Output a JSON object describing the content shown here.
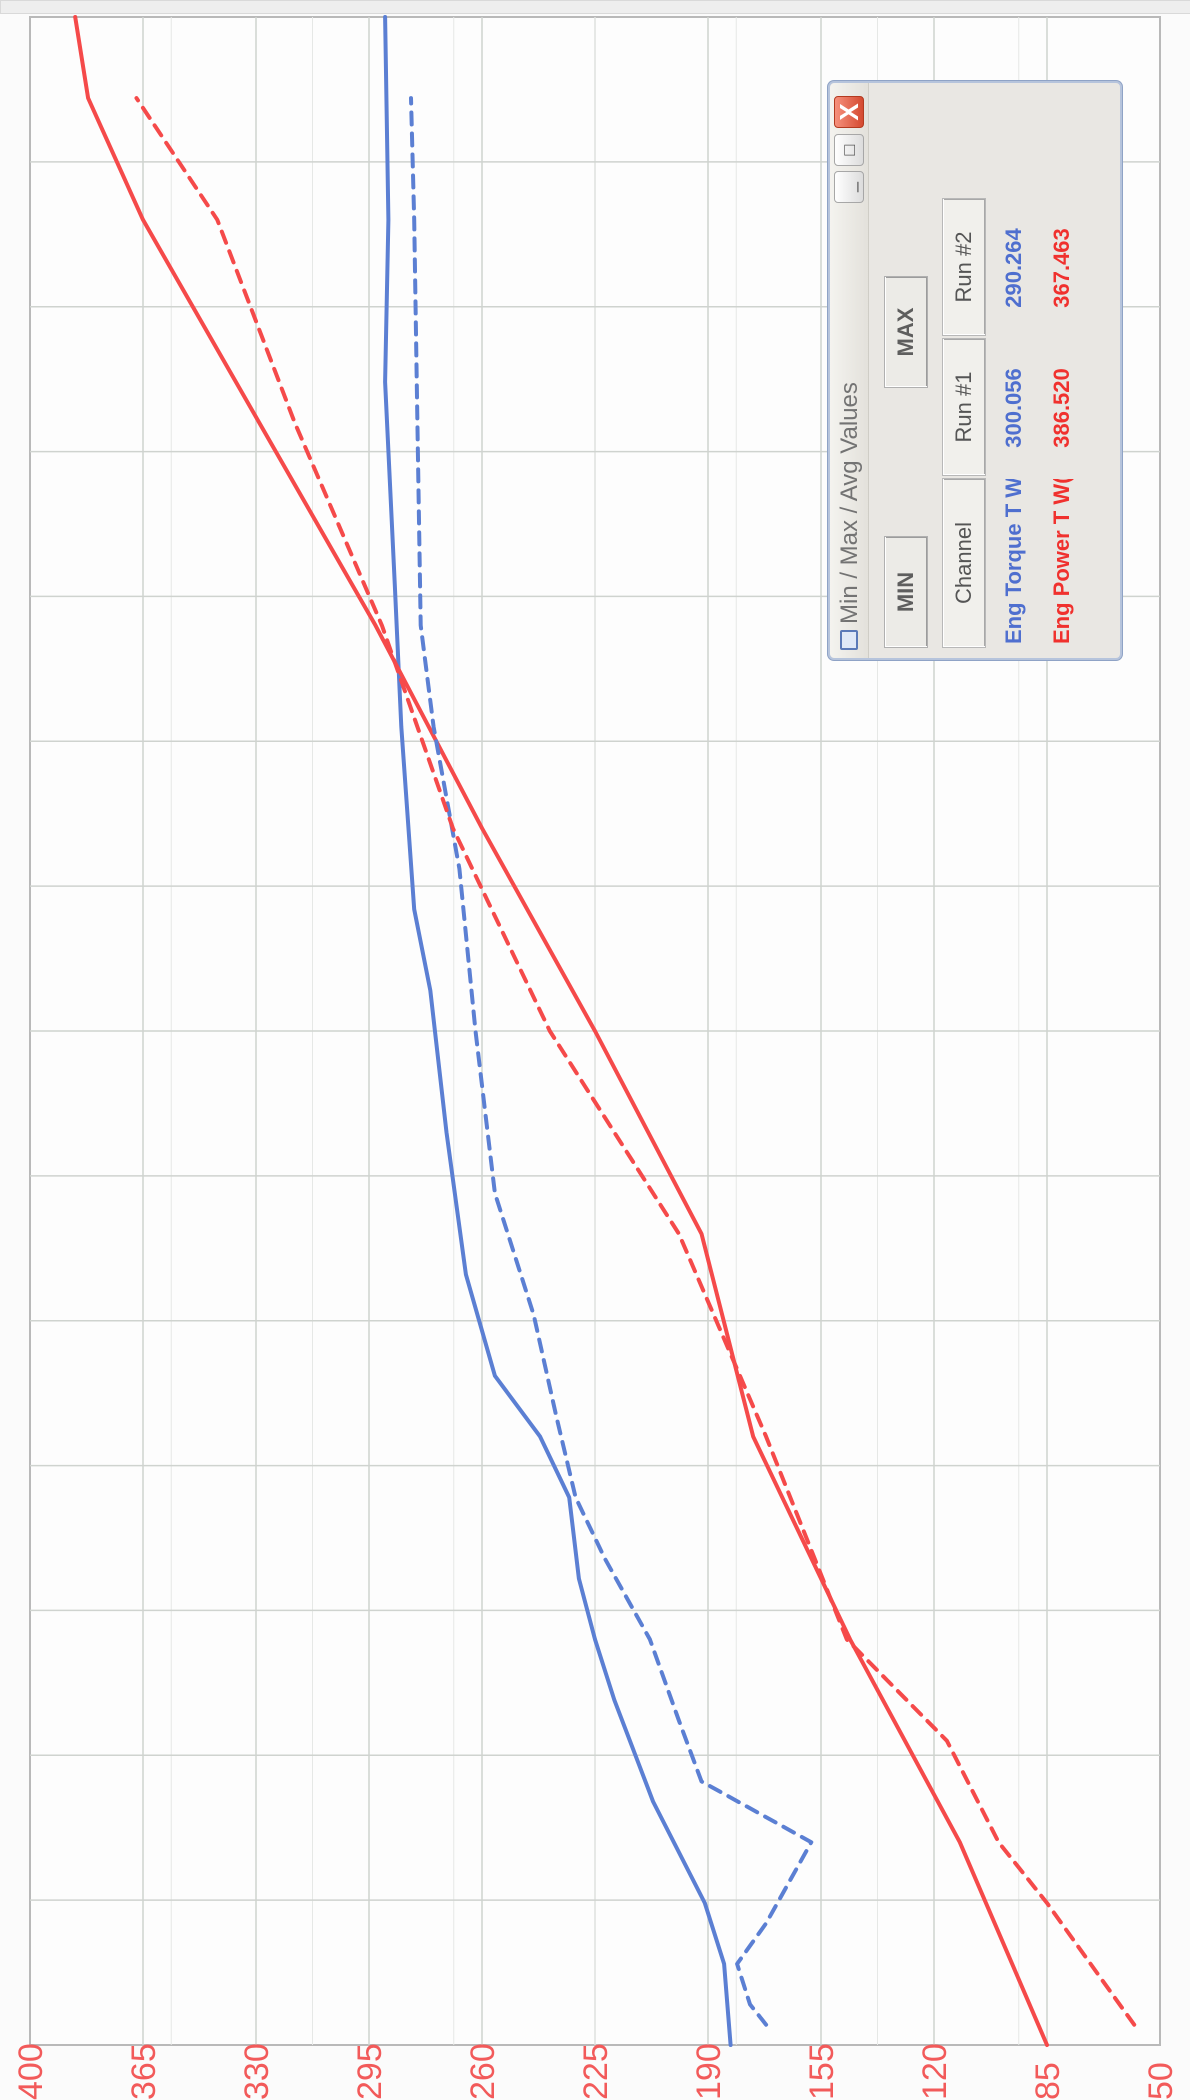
{
  "window": {
    "title": "Min / Max / Avg Values",
    "min_button_label": "_",
    "max_button_label": "□",
    "close_button_label": "X"
  },
  "mode_buttons": {
    "min_label": "MIN",
    "max_label": "MAX"
  },
  "table": {
    "columns": [
      "Channel",
      "Run #1",
      "Run #2"
    ],
    "rows": [
      {
        "channel": "Eng Torque T W",
        "run1": "300.056",
        "run2": "290.264",
        "color": "#4f6fcf"
      },
      {
        "channel": "Eng Power T W(",
        "run1": "386.520",
        "run2": "367.463",
        "color": "#f0312e"
      }
    ]
  },
  "chart_data": {
    "type": "line",
    "y_tick_labels": [
      "50",
      "85",
      "120",
      "155",
      "190",
      "225",
      "260",
      "295",
      "330",
      "365",
      "400"
    ],
    "ylim": [
      50,
      400
    ],
    "x_range": [
      0,
      100
    ],
    "grid": true,
    "series": [
      {
        "name": "Eng Torque T W",
        "run": "Run #1",
        "style": "solid",
        "color": "#5b7fd3",
        "x": [
          0,
          4,
          7,
          12,
          17,
          20,
          23,
          27,
          30,
          33,
          38,
          45,
          52,
          56,
          65,
          72,
          82,
          90,
          100
        ],
        "y": [
          183,
          185,
          191,
          207,
          219,
          225,
          230,
          233,
          242,
          256,
          265,
          271,
          276,
          281,
          285,
          287,
          290,
          289,
          290
        ]
      },
      {
        "name": "Eng Power T W(",
        "run": "Run #1",
        "style": "solid",
        "color": "#f54a4a",
        "x": [
          0,
          10,
          20,
          30,
          40,
          50,
          60,
          70,
          80,
          90,
          96,
          100
        ],
        "y": [
          85,
          112,
          146,
          176,
          192,
          225,
          260,
          293,
          329,
          365,
          382,
          386
        ]
      },
      {
        "name": "Eng Torque T W",
        "run": "Run #2",
        "style": "dashed",
        "color": "#5b7fd3",
        "x": [
          1,
          2,
          4,
          6,
          8,
          10,
          13,
          16,
          20,
          24,
          27,
          31,
          36,
          42,
          50,
          58,
          65,
          70,
          80,
          90,
          96
        ],
        "y": [
          172,
          177,
          181,
          172,
          165,
          158,
          192,
          199,
          208,
          222,
          231,
          237,
          244,
          256,
          262,
          267,
          275,
          279,
          280,
          281,
          282
        ]
      },
      {
        "name": "Eng Power T W(",
        "run": "Run #2",
        "style": "dashed",
        "color": "#f54a4a",
        "x": [
          1,
          3,
          7,
          10,
          15,
          20,
          30,
          40,
          50,
          60,
          70,
          80,
          90,
          96
        ],
        "y": [
          58,
          67,
          85,
          100,
          116,
          147,
          172,
          199,
          239,
          269,
          291,
          318,
          342,
          367
        ]
      }
    ]
  }
}
